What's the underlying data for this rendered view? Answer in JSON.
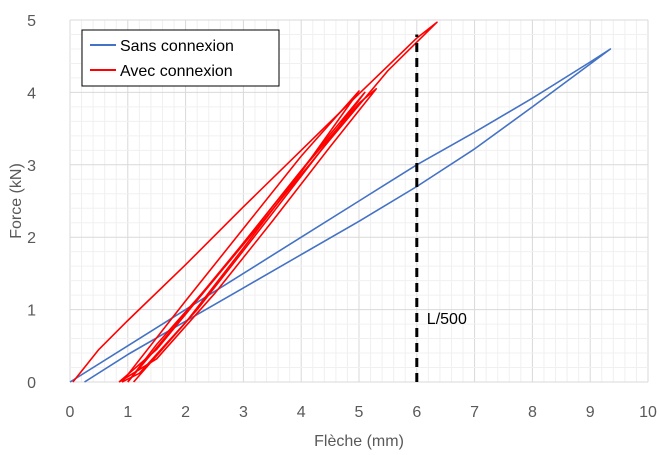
{
  "chart_data": {
    "type": "line",
    "xlabel": "Flèche (mm)",
    "ylabel": "Force (kN)",
    "xlim": [
      0,
      10
    ],
    "ylim": [
      0,
      5
    ],
    "x_ticks": [
      0,
      1,
      2,
      3,
      4,
      5,
      6,
      7,
      8,
      9,
      10
    ],
    "y_ticks": [
      0,
      1,
      2,
      3,
      4,
      5
    ],
    "grid": true,
    "legend": "top-left",
    "series": [
      {
        "name": "Sans connexion",
        "color": "#4472C4",
        "loops": [
          {
            "loading": [
              [
                0.0,
                0.0
              ],
              [
                1.0,
                0.5
              ],
              [
                2.0,
                1.0
              ],
              [
                3.0,
                1.5
              ],
              [
                4.0,
                2.0
              ],
              [
                5.0,
                2.5
              ],
              [
                6.0,
                3.0
              ],
              [
                7.0,
                3.45
              ],
              [
                8.0,
                3.92
              ],
              [
                9.0,
                4.42
              ],
              [
                9.35,
                4.6
              ]
            ],
            "unloading": [
              [
                9.35,
                4.6
              ],
              [
                8.0,
                3.8
              ],
              [
                7.0,
                3.22
              ],
              [
                6.0,
                2.7
              ],
              [
                5.0,
                2.22
              ],
              [
                4.0,
                1.76
              ],
              [
                3.0,
                1.3
              ],
              [
                2.0,
                0.84
              ],
              [
                1.0,
                0.38
              ],
              [
                0.25,
                0.0
              ]
            ]
          }
        ]
      },
      {
        "name": "Avec connexion",
        "color": "#FF0000",
        "loops": [
          {
            "loading": [
              [
                0.05,
                0.0
              ],
              [
                0.5,
                0.45
              ],
              [
                1.0,
                0.85
              ],
              [
                2.0,
                1.62
              ],
              [
                3.0,
                2.42
              ],
              [
                4.0,
                3.2
              ],
              [
                5.0,
                3.98
              ],
              [
                6.0,
                4.75
              ],
              [
                6.35,
                4.97
              ]
            ],
            "unloading": [
              [
                6.35,
                4.97
              ],
              [
                5.5,
                4.3
              ],
              [
                4.5,
                3.35
              ],
              [
                3.5,
                2.38
              ],
              [
                2.5,
                1.42
              ],
              [
                1.5,
                0.52
              ],
              [
                1.0,
                0.0
              ]
            ]
          },
          {
            "loading": [
              [
                1.0,
                0.0
              ],
              [
                2.0,
                0.95
              ],
              [
                3.0,
                1.92
              ],
              [
                4.0,
                2.92
              ],
              [
                5.0,
                3.85
              ],
              [
                5.3,
                4.05
              ]
            ],
            "unloading": [
              [
                5.3,
                4.05
              ],
              [
                4.5,
                3.25
              ],
              [
                3.5,
                2.22
              ],
              [
                2.5,
                1.22
              ],
              [
                1.5,
                0.32
              ],
              [
                0.85,
                0.0
              ]
            ]
          },
          {
            "loading": [
              [
                0.85,
                0.0
              ],
              [
                1.5,
                0.45
              ],
              [
                2.5,
                1.42
              ],
              [
                3.5,
                2.42
              ],
              [
                4.5,
                3.42
              ],
              [
                5.1,
                4.0
              ]
            ],
            "unloading": [
              [
                5.1,
                4.0
              ],
              [
                4.2,
                3.05
              ],
              [
                3.2,
                2.02
              ],
              [
                2.2,
                1.0
              ],
              [
                1.2,
                0.12
              ],
              [
                0.9,
                0.0
              ]
            ]
          },
          {
            "loading": [
              [
                0.9,
                0.0
              ],
              [
                2.0,
                1.12
              ],
              [
                3.0,
                2.12
              ],
              [
                4.0,
                3.12
              ],
              [
                5.0,
                4.02
              ]
            ],
            "unloading": [
              [
                5.0,
                4.02
              ],
              [
                4.0,
                2.9
              ],
              [
                3.0,
                1.85
              ],
              [
                2.0,
                0.82
              ],
              [
                1.1,
                0.0
              ]
            ]
          }
        ]
      }
    ],
    "reference_line": {
      "label": "L/500",
      "x": 6.0,
      "y_range": [
        0,
        4.8
      ],
      "color": "#000000",
      "style": "dashed"
    }
  }
}
